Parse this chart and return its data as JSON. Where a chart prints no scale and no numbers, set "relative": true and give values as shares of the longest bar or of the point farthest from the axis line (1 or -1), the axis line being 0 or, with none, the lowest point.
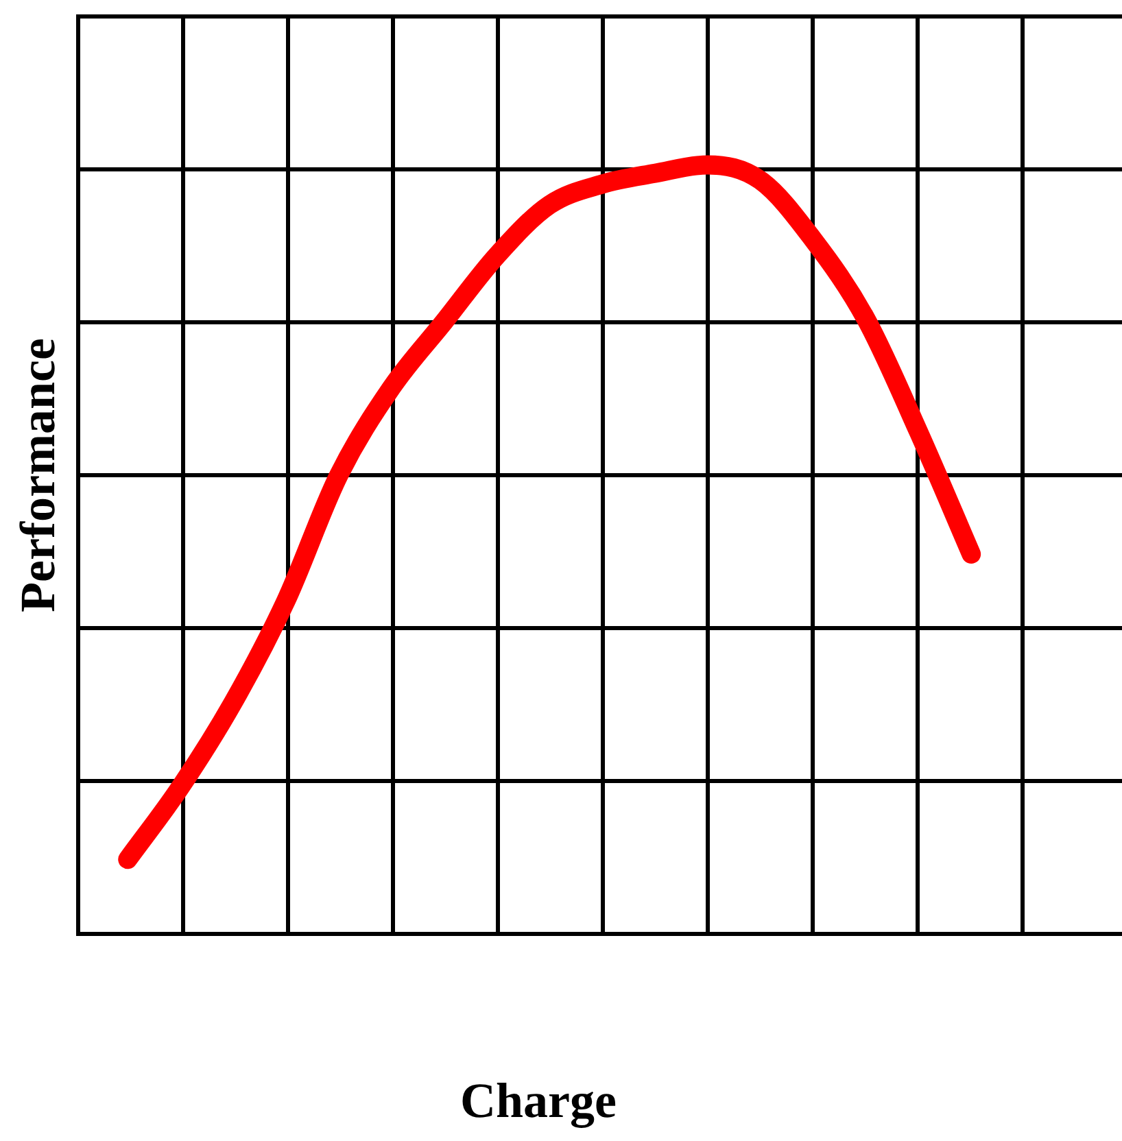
{
  "chart_data": {
    "type": "line",
    "relative": true,
    "xlabel": "Charge",
    "ylabel": "Performance",
    "grid": true,
    "marker": "none",
    "line_style": "solid",
    "categories": [
      null,
      null,
      null,
      null,
      null,
      null,
      null,
      null,
      null,
      null,
      null,
      null,
      null,
      null,
      null,
      null,
      null
    ],
    "series": [
      {
        "color": "#ff0000",
        "values": [
          0.097,
          0.191,
          0.301,
          0.433,
          0.596,
          0.71,
          0.796,
          0.882,
          0.948,
          0.975,
          0.989,
          1,
          0.98,
          0.903,
          0.8,
          0.653,
          0.494
        ]
      }
    ]
  }
}
